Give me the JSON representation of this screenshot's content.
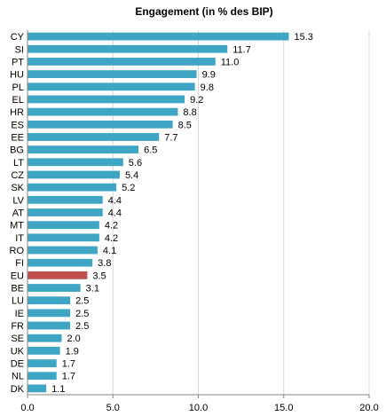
{
  "chart_data": {
    "type": "bar",
    "orientation": "horizontal",
    "title": "Engagement (in % des BIP)",
    "categories": [
      "CY",
      "SI",
      "PT",
      "HU",
      "PL",
      "EL",
      "HR",
      "ES",
      "EE",
      "BG",
      "LT",
      "CZ",
      "SK",
      "LV",
      "AT",
      "MT",
      "IT",
      "RO",
      "FI",
      "EU",
      "BE",
      "LU",
      "IE",
      "FR",
      "SE",
      "UK",
      "DE",
      "NL",
      "DK"
    ],
    "values": [
      15.3,
      11.7,
      11.0,
      9.9,
      9.8,
      9.2,
      8.8,
      8.5,
      7.7,
      6.5,
      5.6,
      5.4,
      5.2,
      4.4,
      4.4,
      4.2,
      4.2,
      4.1,
      3.8,
      3.5,
      3.1,
      2.5,
      2.5,
      2.5,
      2.0,
      1.9,
      1.7,
      1.7,
      1.1
    ],
    "value_labels": [
      "15.3",
      "11.7",
      "11.0",
      "9.9",
      "9.8",
      "9.2",
      "8.8",
      "8.5",
      "7.7",
      "6.5",
      "5.6",
      "5.4",
      "5.2",
      "4.4",
      "4.4",
      "4.2",
      "4.2",
      "4.1",
      "3.8",
      "3.5",
      "3.1",
      "2.5",
      "2.5",
      "2.5",
      "2.0",
      "1.9",
      "1.7",
      "1.7",
      "1.1"
    ],
    "highlight_category": "EU",
    "xlim": [
      0,
      20
    ],
    "xticks": [
      0,
      5,
      10,
      15,
      20
    ],
    "xtick_labels": [
      "0.0",
      "5.0",
      "10.0",
      "15.0",
      "20.0"
    ],
    "grid": true,
    "legend": "none",
    "colors": {
      "bar": "#3ea6c4",
      "bar_highlight": "#c0504d",
      "grid": "#d9d9d9",
      "axis": "#868686"
    }
  }
}
